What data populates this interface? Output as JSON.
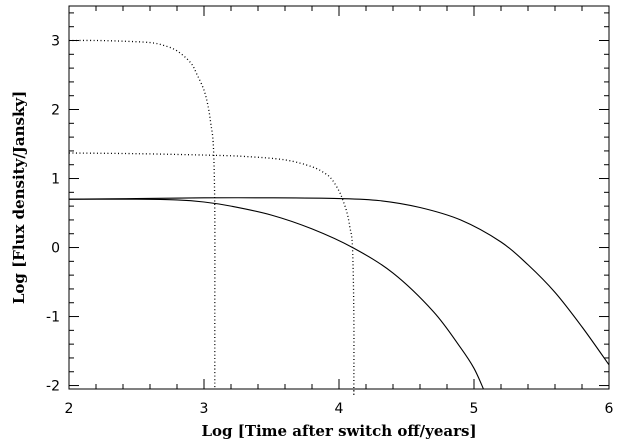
{
  "chart_data": {
    "type": "line",
    "title": "",
    "xlabel": "Log [Time after switch off/years]",
    "ylabel": "Log [Flux density/Jansky]",
    "xlim": [
      2,
      6
    ],
    "ylim": [
      -2.05,
      3.5
    ],
    "xticks": [
      2,
      3,
      4,
      5,
      6
    ],
    "yticks": [
      -2,
      -1,
      0,
      1,
      2,
      3
    ],
    "xtick_labels": [
      "2",
      "3",
      "4",
      "5",
      "6"
    ],
    "ytick_labels": [
      "-2",
      "-1",
      "0",
      "1",
      "2",
      "3"
    ],
    "grid": false,
    "series": [
      {
        "style": "dotted",
        "x": [
          2.0,
          2.2,
          2.4,
          2.6,
          2.7,
          2.8,
          2.9,
          2.95,
          3.0,
          3.03,
          3.05,
          3.07,
          3.08,
          3.08,
          3.08
        ],
        "y": [
          3.0,
          3.0,
          2.99,
          2.97,
          2.93,
          2.85,
          2.68,
          2.5,
          2.28,
          2.05,
          1.8,
          1.45,
          0.5,
          -1.0,
          -2.05
        ]
      },
      {
        "style": "dotted",
        "x": [
          2.0,
          2.5,
          3.0,
          3.3,
          3.6,
          3.8,
          3.9,
          3.95,
          4.0,
          4.03,
          4.06,
          4.08,
          4.1,
          4.11,
          4.11,
          4.11
        ],
        "y": [
          1.37,
          1.36,
          1.34,
          1.32,
          1.27,
          1.17,
          1.07,
          0.98,
          0.82,
          0.68,
          0.5,
          0.3,
          0.0,
          -1.0,
          -2.05,
          -2.05
        ]
      },
      {
        "style": "solid",
        "x": [
          2.0,
          2.5,
          3.0,
          3.5,
          4.0,
          4.3,
          4.6,
          4.9,
          5.2,
          5.4,
          5.6,
          5.8,
          6.0
        ],
        "y": [
          0.7,
          0.71,
          0.72,
          0.72,
          0.71,
          0.68,
          0.58,
          0.4,
          0.08,
          -0.25,
          -0.65,
          -1.15,
          -1.7
        ]
      },
      {
        "style": "solid",
        "x": [
          2.0,
          2.5,
          2.8,
          3.0,
          3.2,
          3.5,
          3.8,
          4.1,
          4.4,
          4.7,
          4.9,
          5.0,
          5.07
        ],
        "y": [
          0.7,
          0.7,
          0.69,
          0.66,
          0.6,
          0.47,
          0.27,
          0.0,
          -0.37,
          -0.93,
          -1.45,
          -1.75,
          -2.05
        ]
      }
    ]
  }
}
